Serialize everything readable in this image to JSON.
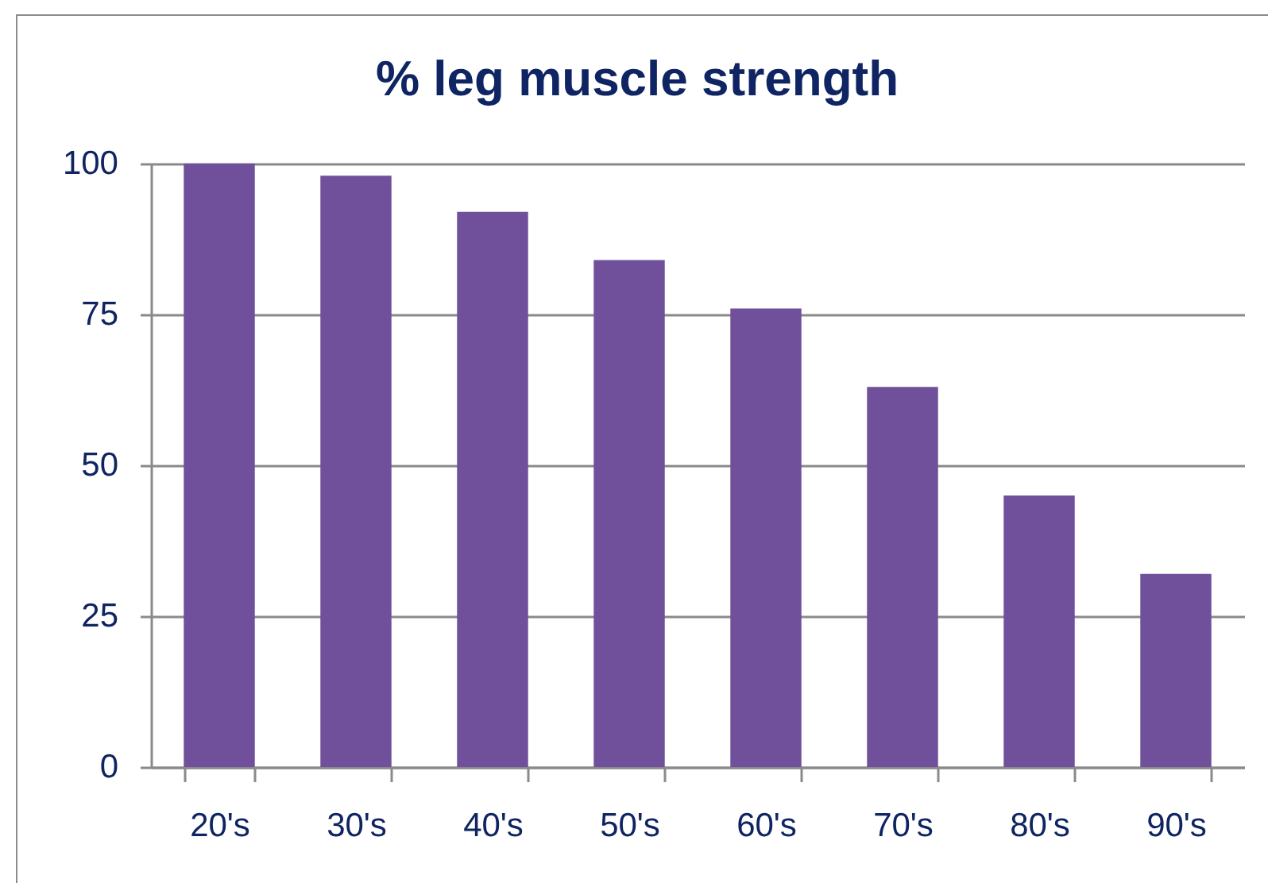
{
  "chart_data": {
    "type": "bar",
    "title": "% leg muscle strength",
    "categories": [
      "20's",
      "30's",
      "40's",
      "50's",
      "60's",
      "70's",
      "80's",
      "90's"
    ],
    "values": [
      100,
      98,
      92,
      84,
      76,
      63,
      45,
      32
    ],
    "color": "#70509a",
    "ylim": [
      0,
      100
    ],
    "yticks": [
      0,
      25,
      50,
      75,
      100
    ],
    "grid": "y"
  }
}
